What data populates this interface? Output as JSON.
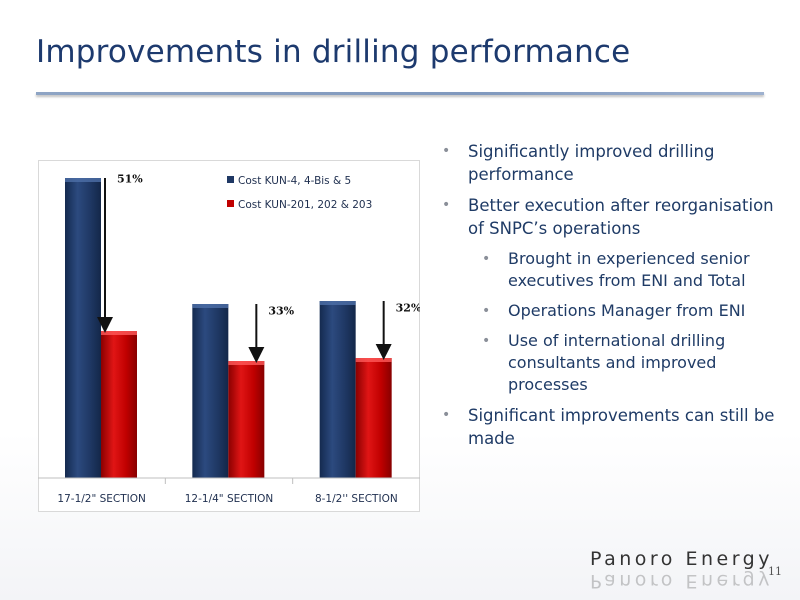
{
  "slide": {
    "title": "Improvements in drilling performance",
    "page_number": "11"
  },
  "bullets": [
    {
      "level": 1,
      "text": "Significantly improved drilling performance"
    },
    {
      "level": 1,
      "text": "Better execution after reorganisation of SNPC’s operations"
    },
    {
      "level": 2,
      "text": "Brought in experienced senior executives from ENI and Total"
    },
    {
      "level": 2,
      "text": "Operations Manager from ENI"
    },
    {
      "level": 2,
      "text": "Use of international drilling consultants and improved processes"
    },
    {
      "level": 1,
      "text": "Significant improvements can still be made"
    }
  ],
  "logo": {
    "text": "Panoro Energy"
  },
  "colors": {
    "title": "#1d3a6e",
    "series_1": "#1f3864",
    "series_2": "#c00000",
    "bullet_text": "#1f3b66"
  },
  "chart_data": {
    "type": "bar",
    "categories": [
      "17-1/2\" SECTION",
      "12-1/4\" SECTION",
      "8-1/2'' SECTION"
    ],
    "series": [
      {
        "name": "Cost KUN-4, 4-Bis & 5",
        "values": [
          100,
          58,
          59
        ],
        "color": "#1f3864"
      },
      {
        "name": "Cost KUN-201, 202 & 203",
        "values": [
          49,
          39,
          40
        ],
        "color": "#c00000"
      }
    ],
    "annotations": [
      "51%",
      "33%",
      "32%"
    ],
    "ylim": [
      0,
      100
    ],
    "grid": false,
    "legend_position": "top-center"
  }
}
